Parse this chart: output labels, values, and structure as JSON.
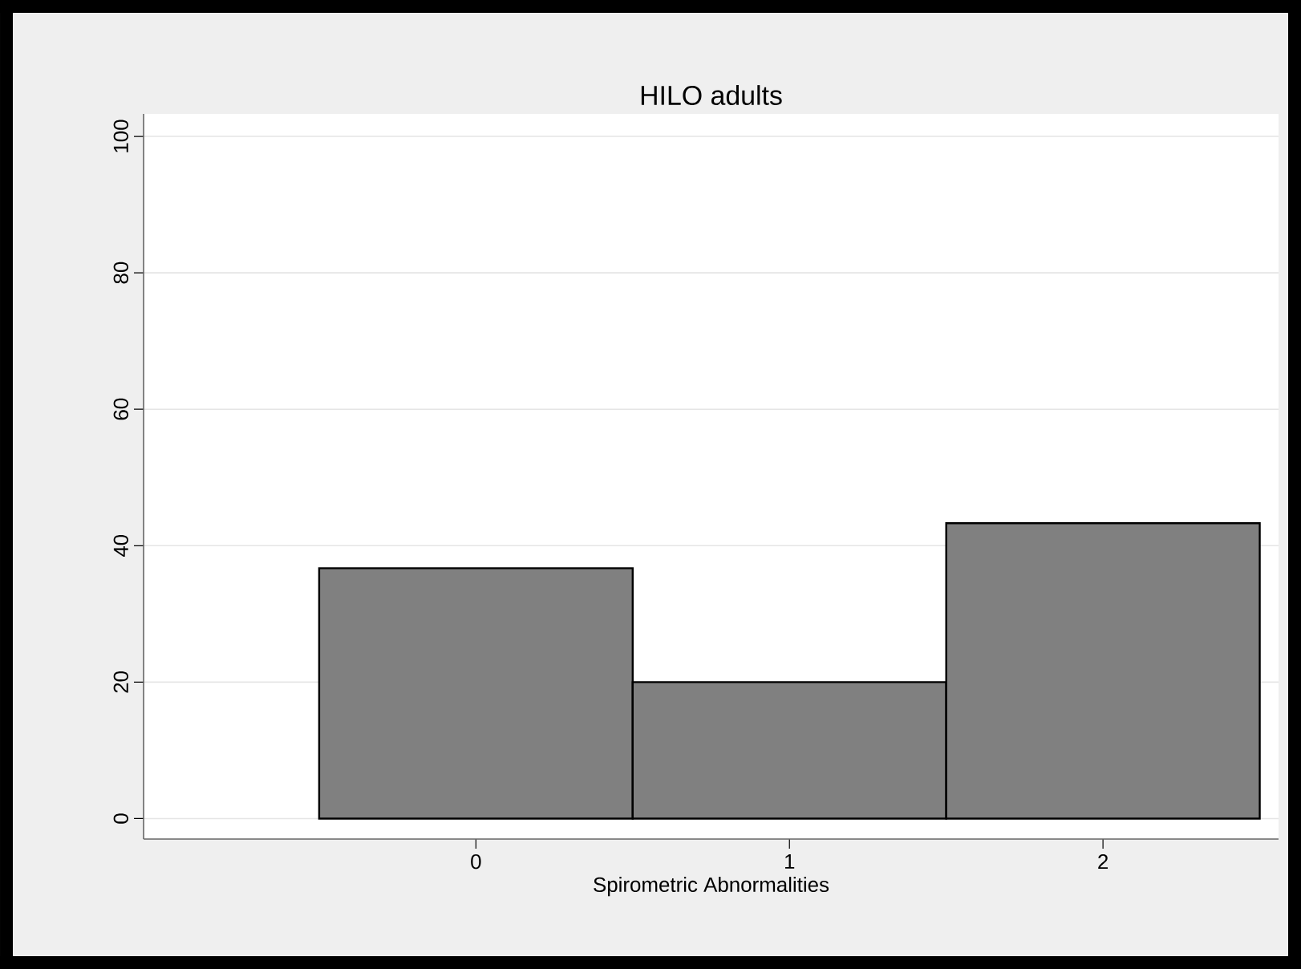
{
  "chart_data": {
    "type": "histogram",
    "title": "HILO adults",
    "xlabel": "Spirometric Abnormalities",
    "bins": [
      -0.5,
      0.5,
      1.5,
      2.5
    ],
    "values": [
      36.7,
      20,
      43.3
    ],
    "color": "#808080",
    "xlim": [
      -1.06,
      2.56
    ],
    "xticks": [
      0,
      1,
      2
    ],
    "ylim": [
      -3,
      103.3
    ],
    "yticks": [
      0,
      20,
      40,
      60,
      80,
      100
    ],
    "grid": "y"
  }
}
